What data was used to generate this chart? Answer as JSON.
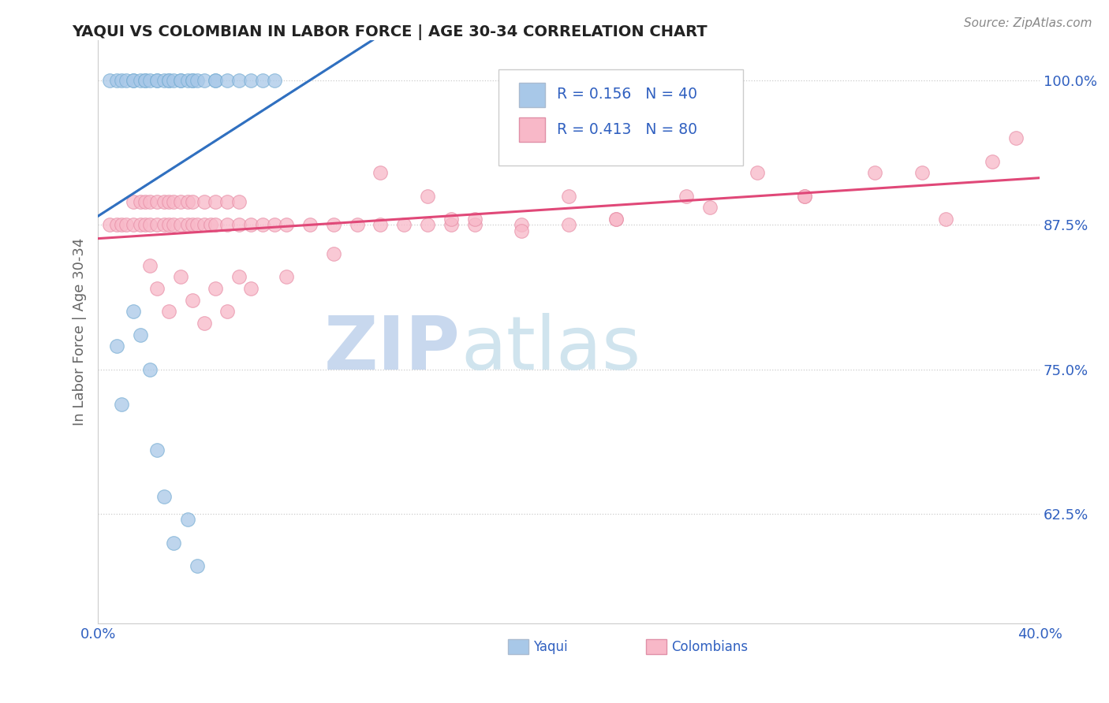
{
  "title": "YAQUI VS COLOMBIAN IN LABOR FORCE | AGE 30-34 CORRELATION CHART",
  "source_text": "Source: ZipAtlas.com",
  "ylabel": "In Labor Force | Age 30-34",
  "xlim": [
    0.0,
    0.4
  ],
  "ylim": [
    0.53,
    1.035
  ],
  "ytick_values": [
    0.625,
    0.75,
    0.875,
    1.0
  ],
  "ytick_labels": [
    "62.5%",
    "75.0%",
    "87.5%",
    "100.0%"
  ],
  "xtick_values": [
    0.0,
    0.4
  ],
  "xtick_labels": [
    "0.0%",
    "40.0%"
  ],
  "yaqui_color": "#a8c8e8",
  "yaqui_edge_color": "#7aafd4",
  "colombian_color": "#f8b8c8",
  "colombian_edge_color": "#e890a8",
  "yaqui_line_color": "#3070c0",
  "colombian_line_color": "#e04878",
  "legend_text_color": "#3060c0",
  "watermark_zip_color": "#c8d8ee",
  "watermark_atlas_color": "#d8e8ee",
  "r_yaqui": 0.156,
  "n_yaqui": 40,
  "r_colombian": 0.413,
  "n_colombian": 80,
  "yaqui_x": [
    0.005,
    0.008,
    0.01,
    0.012,
    0.015,
    0.015,
    0.018,
    0.02,
    0.02,
    0.022,
    0.025,
    0.025,
    0.028,
    0.03,
    0.03,
    0.032,
    0.035,
    0.035,
    0.038,
    0.04,
    0.04,
    0.042,
    0.045,
    0.05,
    0.05,
    0.055,
    0.06,
    0.065,
    0.07,
    0.075,
    0.008,
    0.01,
    0.015,
    0.018,
    0.022,
    0.025,
    0.028,
    0.032,
    0.038,
    0.042
  ],
  "yaqui_y": [
    1.0,
    1.0,
    1.0,
    1.0,
    1.0,
    1.0,
    1.0,
    1.0,
    1.0,
    1.0,
    1.0,
    1.0,
    1.0,
    1.0,
    1.0,
    1.0,
    1.0,
    1.0,
    1.0,
    1.0,
    1.0,
    1.0,
    1.0,
    1.0,
    1.0,
    1.0,
    1.0,
    1.0,
    1.0,
    1.0,
    0.77,
    0.72,
    0.8,
    0.78,
    0.75,
    0.68,
    0.64,
    0.6,
    0.62,
    0.58
  ],
  "colombian_x": [
    0.005,
    0.008,
    0.01,
    0.012,
    0.015,
    0.015,
    0.018,
    0.018,
    0.02,
    0.02,
    0.022,
    0.022,
    0.025,
    0.025,
    0.028,
    0.028,
    0.03,
    0.03,
    0.032,
    0.032,
    0.035,
    0.035,
    0.038,
    0.038,
    0.04,
    0.04,
    0.042,
    0.045,
    0.045,
    0.048,
    0.05,
    0.05,
    0.055,
    0.055,
    0.06,
    0.06,
    0.065,
    0.07,
    0.075,
    0.08,
    0.09,
    0.1,
    0.11,
    0.12,
    0.13,
    0.14,
    0.15,
    0.16,
    0.18,
    0.2,
    0.022,
    0.025,
    0.03,
    0.035,
    0.04,
    0.045,
    0.05,
    0.055,
    0.06,
    0.065,
    0.12,
    0.14,
    0.16,
    0.2,
    0.22,
    0.25,
    0.28,
    0.3,
    0.33,
    0.36,
    0.08,
    0.1,
    0.15,
    0.18,
    0.22,
    0.26,
    0.3,
    0.35,
    0.38,
    0.39
  ],
  "colombian_y": [
    0.875,
    0.875,
    0.875,
    0.875,
    0.875,
    0.895,
    0.875,
    0.895,
    0.875,
    0.895,
    0.875,
    0.895,
    0.875,
    0.895,
    0.875,
    0.895,
    0.875,
    0.895,
    0.875,
    0.895,
    0.875,
    0.895,
    0.875,
    0.895,
    0.875,
    0.895,
    0.875,
    0.875,
    0.895,
    0.875,
    0.875,
    0.895,
    0.875,
    0.895,
    0.875,
    0.895,
    0.875,
    0.875,
    0.875,
    0.875,
    0.875,
    0.875,
    0.875,
    0.875,
    0.875,
    0.875,
    0.875,
    0.875,
    0.875,
    0.875,
    0.84,
    0.82,
    0.8,
    0.83,
    0.81,
    0.79,
    0.82,
    0.8,
    0.83,
    0.82,
    0.92,
    0.9,
    0.88,
    0.9,
    0.88,
    0.9,
    0.92,
    0.9,
    0.92,
    0.88,
    0.83,
    0.85,
    0.88,
    0.87,
    0.88,
    0.89,
    0.9,
    0.92,
    0.93,
    0.95
  ]
}
